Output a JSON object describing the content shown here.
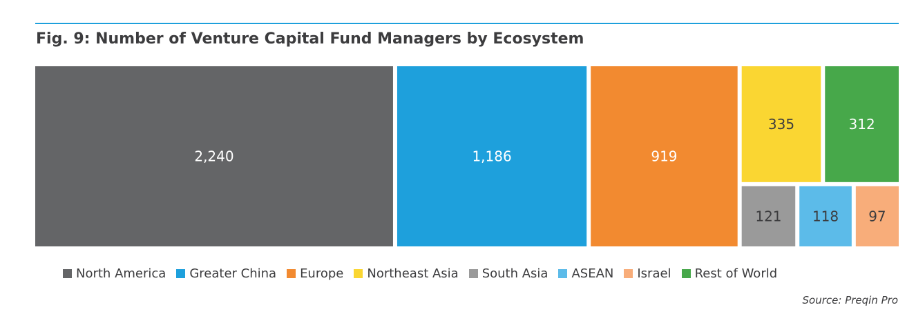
{
  "chart_data": {
    "type": "treemap",
    "title": "Fig. 9: Number of Venture Capital Fund Managers by Ecosystem",
    "source": "Source: Preqin Pro",
    "legend_position": "bottom",
    "segments": [
      {
        "name": "North America",
        "label": "2,240",
        "value": 2240,
        "color": "#646567",
        "text_color": "#ffffff"
      },
      {
        "name": "Greater China",
        "label": "1,186",
        "value": 1186,
        "color": "#1ea0dc",
        "text_color": "#ffffff"
      },
      {
        "name": "Europe",
        "label": "919",
        "value": 919,
        "color": "#f28a30",
        "text_color": "#ffffff"
      },
      {
        "name": "Northeast Asia",
        "label": "335",
        "value": 335,
        "color": "#fad632",
        "text_color": "#3c3c3e"
      },
      {
        "name": "South Asia",
        "label": "121",
        "value": 121,
        "color": "#9a9a9a",
        "text_color": "#3c3c3e"
      },
      {
        "name": "ASEAN",
        "label": "118",
        "value": 118,
        "color": "#5cbbe9",
        "text_color": "#3c3c3e"
      },
      {
        "name": "Israel",
        "label": "97",
        "value": 97,
        "color": "#f8ad7a",
        "text_color": "#3c3c3e"
      },
      {
        "name": "Rest of World",
        "label": "312",
        "value": 312,
        "color": "#47a84a",
        "text_color": "#ffffff"
      }
    ]
  }
}
